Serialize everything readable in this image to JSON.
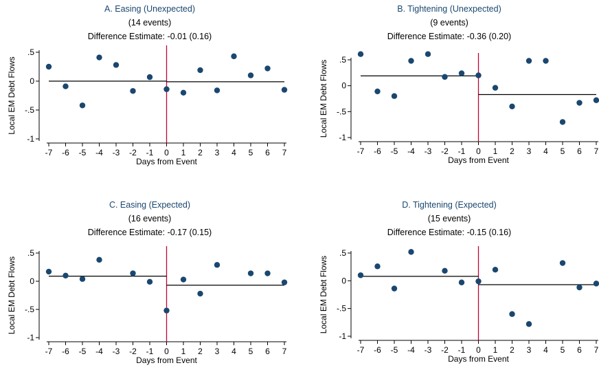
{
  "chart_data": [
    {
      "type": "scatter",
      "title": "A. Easing (Unexpected)",
      "events": "(14 events)",
      "estimate": "Difference Estimate: -0.01 (0.16)",
      "xlabel": "Days from Event",
      "ylabel": "Local EM Debt Flows",
      "xlim": [
        -7,
        7
      ],
      "ylim": [
        -1,
        0.5
      ],
      "x_ticks": [
        "-7",
        "-6",
        "-5",
        "-4",
        "-3",
        "-2",
        "-1",
        "0",
        "1",
        "2",
        "3",
        "4",
        "5",
        "6",
        "7"
      ],
      "y_ticks": [
        ".5",
        "0",
        "-.5",
        "-1"
      ],
      "points": [
        [
          -7,
          0.25
        ],
        [
          -6,
          -0.09
        ],
        [
          -5,
          -0.42
        ],
        [
          -4,
          0.41
        ],
        [
          -3,
          0.28
        ],
        [
          -2,
          -0.17
        ],
        [
          -1,
          0.07
        ],
        [
          0,
          -0.14
        ],
        [
          1,
          -0.2
        ],
        [
          2,
          0.19
        ],
        [
          3,
          -0.16
        ],
        [
          4,
          0.43
        ],
        [
          5,
          0.1
        ],
        [
          6,
          0.22
        ],
        [
          7,
          -0.15
        ]
      ],
      "pre_mean": 0.0,
      "post_mean": -0.01
    },
    {
      "type": "scatter",
      "title": "B. Tightening (Unexpected)",
      "events": "(9 events)",
      "estimate": "Difference Estimate: -0.36 (0.20)",
      "xlabel": "Days from Event",
      "ylabel": "Local EM Debt Flows",
      "xlim": [
        -7,
        7
      ],
      "ylim": [
        -1,
        0.5
      ],
      "x_ticks": [
        "-7",
        "-6",
        "-5",
        "-4",
        "-3",
        "-2",
        "-1",
        "0",
        "1",
        "2",
        "3",
        "4",
        "5",
        "6",
        "7"
      ],
      "y_ticks": [
        ".5",
        "0",
        "-.5",
        "-1"
      ],
      "points": [
        [
          -7,
          0.61
        ],
        [
          -6,
          -0.11
        ],
        [
          -5,
          -0.2
        ],
        [
          -4,
          0.48
        ],
        [
          -3,
          0.61
        ],
        [
          -2,
          0.17
        ],
        [
          -1,
          0.24
        ],
        [
          0,
          0.2
        ],
        [
          1,
          -0.04
        ],
        [
          2,
          -0.4
        ],
        [
          3,
          0.48
        ],
        [
          4,
          0.48
        ],
        [
          5,
          -0.7
        ],
        [
          6,
          -0.33
        ],
        [
          7,
          -0.28
        ]
      ],
      "pre_mean": 0.19,
      "post_mean": -0.17
    },
    {
      "type": "scatter",
      "title": "C. Easing (Expected)",
      "events": "(16 events)",
      "estimate": "Difference Estimate: -0.17 (0.15)",
      "xlabel": "Days from Event",
      "ylabel": "Local EM Debt Flows",
      "xlim": [
        -7,
        7
      ],
      "ylim": [
        -1,
        0.5
      ],
      "x_ticks": [
        "-7",
        "-6",
        "-5",
        "-4",
        "-3",
        "-2",
        "-1",
        "0",
        "1",
        "2",
        "3",
        "4",
        "5",
        "6",
        "7"
      ],
      "y_ticks": [
        ".5",
        "0",
        "-.5",
        "-1"
      ],
      "points": [
        [
          -7,
          0.17
        ],
        [
          -6,
          0.1
        ],
        [
          -5,
          0.04
        ],
        [
          -4,
          0.38
        ],
        [
          -2,
          0.14
        ],
        [
          -1,
          -0.01
        ],
        [
          0,
          -0.52
        ],
        [
          1,
          0.03
        ],
        [
          2,
          -0.22
        ],
        [
          3,
          0.29
        ],
        [
          5,
          0.14
        ],
        [
          6,
          0.14
        ],
        [
          7,
          -0.02
        ]
      ],
      "pre_mean": 0.09,
      "post_mean": -0.07
    },
    {
      "type": "scatter",
      "title": "D. Tightening (Expected)",
      "events": "(15 events)",
      "estimate": "Difference Estimate: -0.15 (0.16)",
      "xlabel": "Days from Event",
      "ylabel": "Local EM Debt Flows",
      "xlim": [
        -7,
        7
      ],
      "ylim": [
        -1,
        0.5
      ],
      "x_ticks": [
        "-7",
        "-6",
        "-5",
        "-4",
        "-3",
        "-2",
        "-1",
        "0",
        "1",
        "2",
        "3",
        "4",
        "5",
        "6",
        "7"
      ],
      "y_ticks": [
        ".5",
        "0",
        "-.5",
        "-1"
      ],
      "points": [
        [
          -7,
          0.1
        ],
        [
          -6,
          0.26
        ],
        [
          -5,
          -0.14
        ],
        [
          -4,
          0.52
        ],
        [
          -2,
          0.18
        ],
        [
          -1,
          -0.03
        ],
        [
          0,
          -0.01
        ],
        [
          1,
          0.2
        ],
        [
          2,
          -0.6
        ],
        [
          3,
          -0.78
        ],
        [
          5,
          0.32
        ],
        [
          6,
          -0.12
        ],
        [
          7,
          -0.05
        ]
      ],
      "pre_mean": 0.08,
      "post_mean": -0.07
    }
  ],
  "colors": {
    "marker": "#1a476f",
    "event_line": "#c10534",
    "mean_line": "#000000",
    "title": "#1a476f"
  }
}
